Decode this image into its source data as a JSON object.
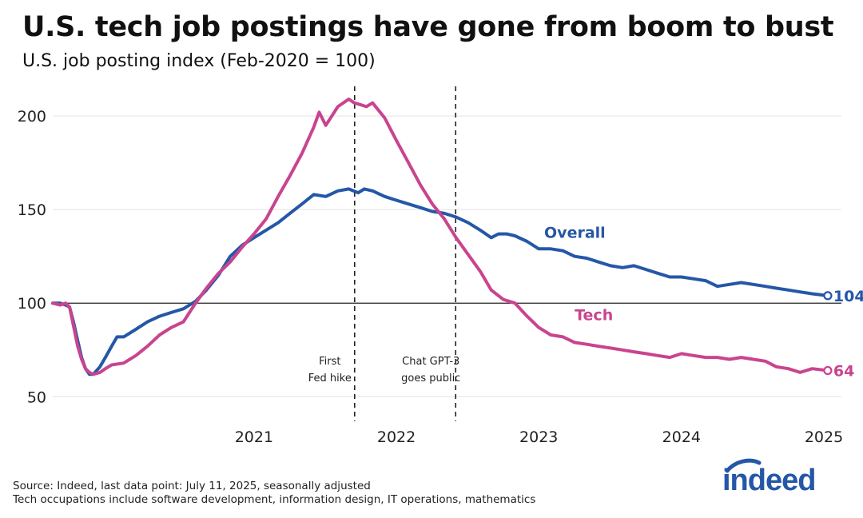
{
  "header": {
    "title": "U.S. tech job postings have gone from boom to bust",
    "subtitle": "U.S. job posting index (Feb-2020 = 100)"
  },
  "footer": {
    "source": "Source: Indeed, last data point: July 11, 2025, seasonally adjusted",
    "note": "Tech occupations include software development, information design, IT operations, mathematics"
  },
  "logo": {
    "text": "indeed",
    "color": "#2557a7"
  },
  "chart_data": {
    "type": "line",
    "title": "U.S. tech job postings have gone from boom to bust",
    "subtitle": "U.S. job posting index (Feb-2020 = 100)",
    "xlabel": "",
    "ylabel": "",
    "ylim": [
      45,
      215
    ],
    "xlim": [
      "2020-02-01",
      "2025-08-15"
    ],
    "y_ticks": [
      50,
      100,
      150,
      200
    ],
    "x_ticks": [
      "2021",
      "2022",
      "2023",
      "2024",
      "2025"
    ],
    "grid": "horizontal",
    "reference_line": 100,
    "annotations": [
      {
        "date": "2022-03-16",
        "lines": [
          "First",
          "Fed hike"
        ]
      },
      {
        "date": "2022-11-30",
        "lines": [
          "Chat GPT-3",
          "goes public"
        ]
      }
    ],
    "series": [
      {
        "name": "Overall",
        "color": "#2557a7",
        "end_label": "104",
        "points": [
          [
            "2020-02-01",
            100
          ],
          [
            "2020-02-20",
            100
          ],
          [
            "2020-03-05",
            99
          ],
          [
            "2020-03-15",
            98
          ],
          [
            "2020-03-25",
            90
          ],
          [
            "2020-04-05",
            80
          ],
          [
            "2020-04-15",
            71
          ],
          [
            "2020-04-25",
            65
          ],
          [
            "2020-05-05",
            62
          ],
          [
            "2020-05-15",
            62
          ],
          [
            "2020-06-01",
            66
          ],
          [
            "2020-06-15",
            71
          ],
          [
            "2020-07-01",
            77
          ],
          [
            "2020-07-15",
            82
          ],
          [
            "2020-08-01",
            82
          ],
          [
            "2020-09-01",
            86
          ],
          [
            "2020-10-01",
            90
          ],
          [
            "2020-11-01",
            93
          ],
          [
            "2020-12-01",
            95
          ],
          [
            "2021-01-01",
            97
          ],
          [
            "2021-02-01",
            101
          ],
          [
            "2021-03-01",
            107
          ],
          [
            "2021-04-01",
            115
          ],
          [
            "2021-05-01",
            125
          ],
          [
            "2021-06-01",
            131
          ],
          [
            "2021-07-01",
            135
          ],
          [
            "2021-08-01",
            139
          ],
          [
            "2021-09-01",
            143
          ],
          [
            "2021-10-01",
            148
          ],
          [
            "2021-11-01",
            153
          ],
          [
            "2021-12-01",
            158
          ],
          [
            "2022-01-01",
            157
          ],
          [
            "2022-02-01",
            160
          ],
          [
            "2022-03-01",
            161
          ],
          [
            "2022-03-25",
            159
          ],
          [
            "2022-04-10",
            161
          ],
          [
            "2022-05-01",
            160
          ],
          [
            "2022-06-01",
            157
          ],
          [
            "2022-07-01",
            155
          ],
          [
            "2022-08-01",
            153
          ],
          [
            "2022-09-01",
            151
          ],
          [
            "2022-10-01",
            149
          ],
          [
            "2022-11-01",
            148
          ],
          [
            "2022-12-01",
            146
          ],
          [
            "2023-01-01",
            143
          ],
          [
            "2023-02-01",
            139
          ],
          [
            "2023-03-01",
            135
          ],
          [
            "2023-03-20",
            137
          ],
          [
            "2023-04-10",
            137
          ],
          [
            "2023-05-01",
            136
          ],
          [
            "2023-06-01",
            133
          ],
          [
            "2023-07-01",
            129
          ],
          [
            "2023-08-01",
            129
          ],
          [
            "2023-09-01",
            128
          ],
          [
            "2023-10-01",
            125
          ],
          [
            "2023-11-01",
            124
          ],
          [
            "2023-12-01",
            122
          ],
          [
            "2024-01-01",
            120
          ],
          [
            "2024-02-01",
            119
          ],
          [
            "2024-03-01",
            120
          ],
          [
            "2024-04-01",
            118
          ],
          [
            "2024-05-01",
            116
          ],
          [
            "2024-06-01",
            114
          ],
          [
            "2024-07-01",
            114
          ],
          [
            "2024-08-01",
            113
          ],
          [
            "2024-09-01",
            112
          ],
          [
            "2024-10-01",
            109
          ],
          [
            "2024-11-01",
            110
          ],
          [
            "2024-12-01",
            111
          ],
          [
            "2025-01-01",
            110
          ],
          [
            "2025-02-01",
            109
          ],
          [
            "2025-03-01",
            108
          ],
          [
            "2025-04-01",
            107
          ],
          [
            "2025-05-01",
            106
          ],
          [
            "2025-06-01",
            105
          ],
          [
            "2025-07-11",
            104
          ]
        ]
      },
      {
        "name": "Tech",
        "color": "#c9448f",
        "end_label": "64",
        "points": [
          [
            "2020-02-01",
            100
          ],
          [
            "2020-02-20",
            99
          ],
          [
            "2020-03-05",
            100
          ],
          [
            "2020-03-15",
            98
          ],
          [
            "2020-03-25",
            88
          ],
          [
            "2020-04-05",
            77
          ],
          [
            "2020-04-15",
            70
          ],
          [
            "2020-04-25",
            65
          ],
          [
            "2020-05-05",
            63
          ],
          [
            "2020-05-15",
            62
          ],
          [
            "2020-06-01",
            63
          ],
          [
            "2020-06-15",
            65
          ],
          [
            "2020-07-01",
            67
          ],
          [
            "2020-08-01",
            68
          ],
          [
            "2020-09-01",
            72
          ],
          [
            "2020-10-01",
            77
          ],
          [
            "2020-11-01",
            83
          ],
          [
            "2020-12-01",
            87
          ],
          [
            "2021-01-01",
            90
          ],
          [
            "2021-02-01",
            100
          ],
          [
            "2021-03-01",
            108
          ],
          [
            "2021-04-01",
            116
          ],
          [
            "2021-05-01",
            122
          ],
          [
            "2021-06-01",
            130
          ],
          [
            "2021-07-01",
            137
          ],
          [
            "2021-08-01",
            145
          ],
          [
            "2021-09-01",
            157
          ],
          [
            "2021-10-01",
            168
          ],
          [
            "2021-11-01",
            180
          ],
          [
            "2021-12-01",
            194
          ],
          [
            "2021-12-15",
            202
          ],
          [
            "2022-01-01",
            195
          ],
          [
            "2022-02-01",
            205
          ],
          [
            "2022-03-01",
            209
          ],
          [
            "2022-03-15",
            207
          ],
          [
            "2022-04-01",
            206
          ],
          [
            "2022-04-15",
            205
          ],
          [
            "2022-05-01",
            207
          ],
          [
            "2022-06-01",
            199
          ],
          [
            "2022-07-01",
            187
          ],
          [
            "2022-08-01",
            175
          ],
          [
            "2022-09-01",
            163
          ],
          [
            "2022-10-01",
            153
          ],
          [
            "2022-11-01",
            145
          ],
          [
            "2022-12-01",
            135
          ],
          [
            "2023-01-01",
            126
          ],
          [
            "2023-02-01",
            117
          ],
          [
            "2023-03-01",
            107
          ],
          [
            "2023-04-01",
            102
          ],
          [
            "2023-05-01",
            100
          ],
          [
            "2023-06-01",
            93
          ],
          [
            "2023-07-01",
            87
          ],
          [
            "2023-08-01",
            83
          ],
          [
            "2023-09-01",
            82
          ],
          [
            "2023-10-01",
            79
          ],
          [
            "2023-11-01",
            78
          ],
          [
            "2023-12-01",
            77
          ],
          [
            "2024-01-01",
            76
          ],
          [
            "2024-02-01",
            75
          ],
          [
            "2024-03-01",
            74
          ],
          [
            "2024-04-01",
            73
          ],
          [
            "2024-05-01",
            72
          ],
          [
            "2024-06-01",
            71
          ],
          [
            "2024-07-01",
            73
          ],
          [
            "2024-08-01",
            72
          ],
          [
            "2024-09-01",
            71
          ],
          [
            "2024-10-01",
            71
          ],
          [
            "2024-11-01",
            70
          ],
          [
            "2024-12-01",
            71
          ],
          [
            "2025-01-01",
            70
          ],
          [
            "2025-02-01",
            69
          ],
          [
            "2025-03-01",
            66
          ],
          [
            "2025-04-01",
            65
          ],
          [
            "2025-05-01",
            63
          ],
          [
            "2025-06-01",
            65
          ],
          [
            "2025-07-11",
            64
          ]
        ]
      }
    ]
  }
}
